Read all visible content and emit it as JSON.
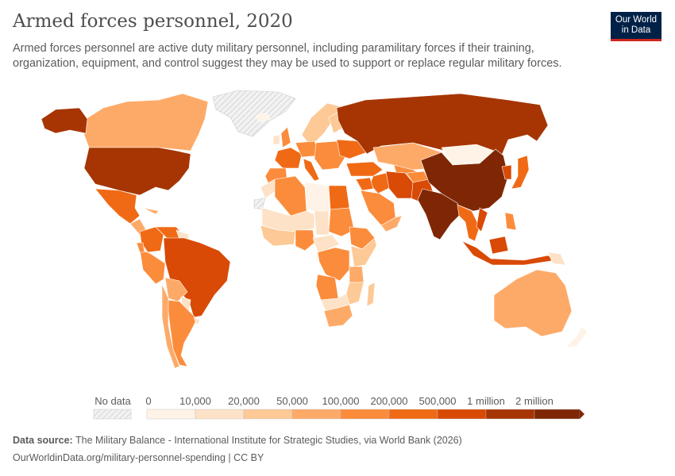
{
  "header": {
    "title": "Armed forces personnel, 2020",
    "subtitle": "Armed forces personnel are active duty military personnel, including paramilitary forces if their training, organization, equipment, and control suggest they may be used to support or replace regular military forces.",
    "logo": "Our World in Data"
  },
  "legend": {
    "no_data_label": "No data",
    "no_data_color": "#e0e0e0",
    "ticks": [
      "0",
      "10,000",
      "20,000",
      "50,000",
      "100,000",
      "200,000",
      "500,000",
      "1 million",
      "2 million"
    ],
    "colors": [
      "#fef3e6",
      "#fde2c7",
      "#fdc996",
      "#fdaa69",
      "#fb8c3c",
      "#f06a16",
      "#d84a05",
      "#a63503",
      "#7f2704"
    ]
  },
  "footer": {
    "source_label": "Data source:",
    "source": "The Military Balance - International Institute for Strategic Studies, via World Bank (2026)",
    "url": "OurWorldinData.org/military-personnel-spending | CC BY"
  }
}
